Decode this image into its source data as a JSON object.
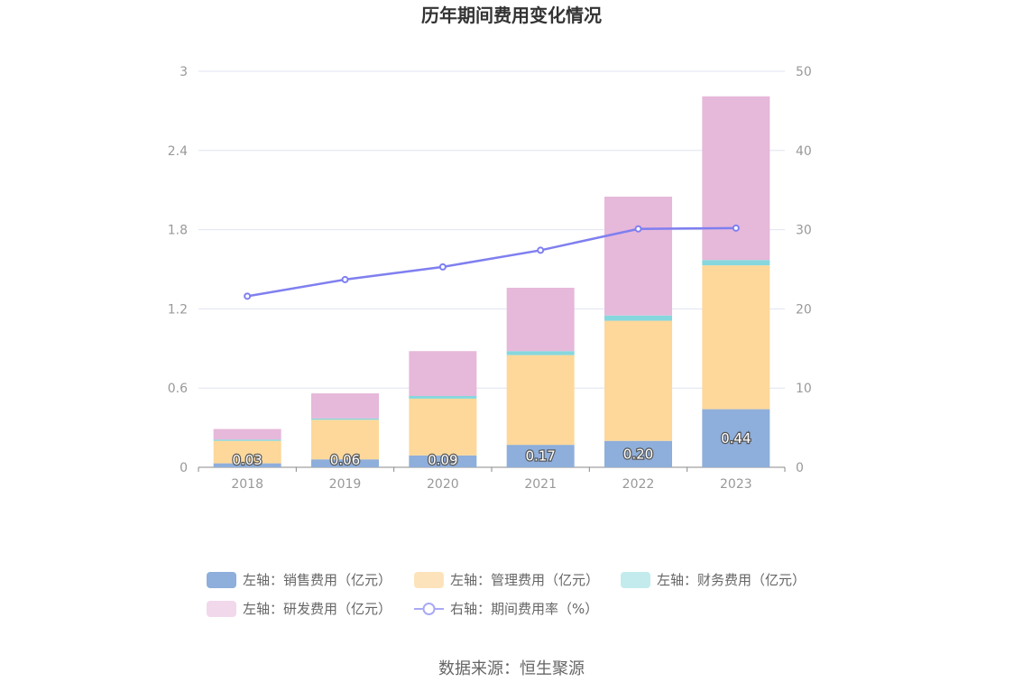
{
  "chart_data": {
    "type": "bar",
    "title": "历年期间费用变化情况",
    "categories": [
      "2018",
      "2019",
      "2020",
      "2021",
      "2022",
      "2023"
    ],
    "left_axis": {
      "ylim": [
        0,
        3
      ],
      "ticks": [
        "0",
        "0.6",
        "1.2",
        "1.8",
        "2.4",
        "3"
      ]
    },
    "right_axis": {
      "ylim": [
        0,
        50
      ],
      "ticks": [
        "0",
        "10",
        "20",
        "30",
        "40",
        "50"
      ]
    },
    "grid": true,
    "legend_position": "bottom",
    "series": [
      {
        "name": "左轴：销售费用（亿元）",
        "type": "bar",
        "stack": "cost",
        "axis": "left",
        "color": "#8eaedb",
        "values": [
          0.03,
          0.06,
          0.09,
          0.17,
          0.2,
          0.44
        ],
        "labels": [
          "0.03",
          "0.06",
          "0.09",
          "0.17",
          "0.20",
          "0.44"
        ]
      },
      {
        "name": "左轴：管理费用（亿元）",
        "type": "bar",
        "stack": "cost",
        "axis": "left",
        "color": "#fdd89a",
        "values": [
          0.17,
          0.3,
          0.43,
          0.68,
          0.91,
          1.09
        ]
      },
      {
        "name": "左轴：财务费用（亿元）",
        "type": "bar",
        "stack": "cost",
        "axis": "left",
        "color": "#86d7dd",
        "values": [
          0.01,
          0.01,
          0.02,
          0.03,
          0.04,
          0.04
        ]
      },
      {
        "name": "左轴：研发费用（亿元）",
        "type": "bar",
        "stack": "cost",
        "axis": "left",
        "color": "#e6b8da",
        "values": [
          0.08,
          0.19,
          0.34,
          0.48,
          0.9,
          1.24
        ]
      },
      {
        "name": "右轴：期间费用率（%）",
        "type": "line",
        "axis": "right",
        "color": "#7f7ff0",
        "values": [
          21.6,
          23.7,
          25.3,
          27.4,
          30.1,
          30.2
        ]
      }
    ]
  },
  "source": "数据来源：恒生聚源"
}
